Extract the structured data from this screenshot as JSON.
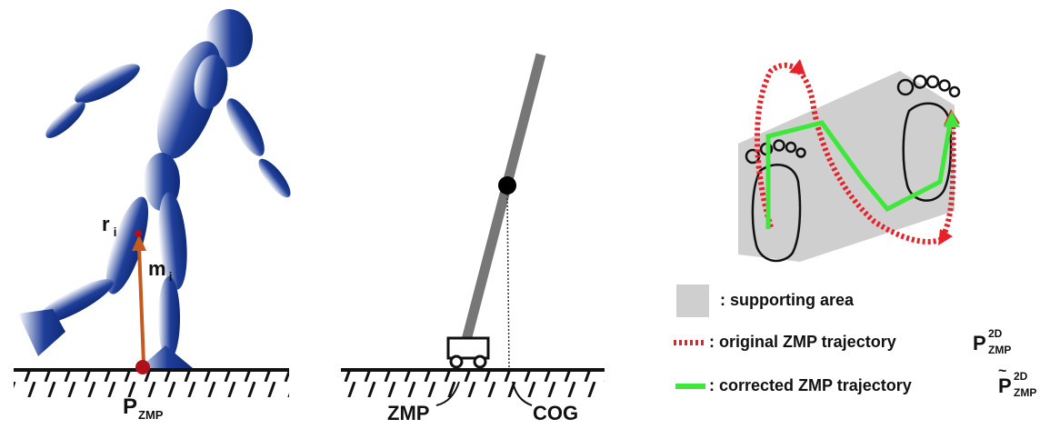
{
  "colors": {
    "figure_blue": "#1f3f9a",
    "figure_light": "#ffffff",
    "mass_vector": "#c35a1f",
    "point_red": "#b0101a",
    "pendulum_gray": "#777777",
    "support_area_gray": "#cfcfcf",
    "original_trajectory": "#e8202a",
    "corrected_trajectory": "#3ee83a",
    "ground": "#111111"
  },
  "walker_panel": {
    "r_base": "r",
    "r_sub": "i",
    "m_base": "m",
    "m_sub": "i",
    "p_base": "P",
    "p_sub": "ZMP"
  },
  "pendulum_panel": {
    "zmp_label": "ZMP",
    "cog_label": "COG"
  },
  "legend": {
    "supporting_area": ": supporting area",
    "original": ": original ZMP trajectory",
    "corrected": ": corrected ZMP trajectory",
    "original_symbol": {
      "base": "P",
      "sup": "2D",
      "sub": "ZMP"
    },
    "corrected_symbol": {
      "base": "P",
      "tilde": "~",
      "sup": "2D",
      "sub": "ZMP"
    }
  },
  "icons": [
    "walking-figure-icon",
    "footprint-icon",
    "cart-icon"
  ]
}
